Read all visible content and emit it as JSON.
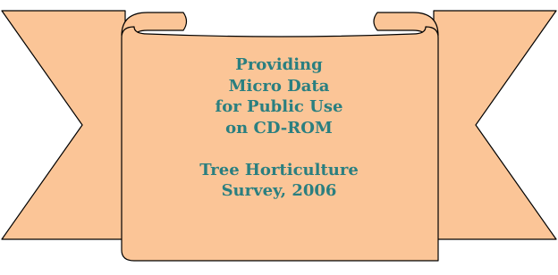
{
  "banner": {
    "blocks": [
      {
        "lines": [
          "Providing",
          "Micro Data",
          "for Public Use",
          "on CD-ROM"
        ]
      },
      {
        "lines": [
          "Tree Horticulture",
          "Survey, 2006"
        ]
      }
    ]
  }
}
